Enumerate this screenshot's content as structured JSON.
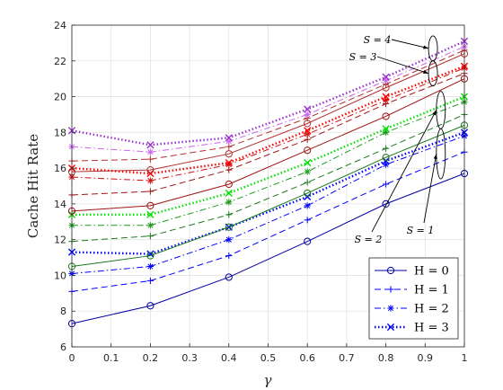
{
  "chart_data": {
    "type": "line",
    "xlabel": "γ",
    "ylabel": "Cache Hit Rate",
    "xlim": [
      0,
      1
    ],
    "ylim": [
      6,
      24
    ],
    "xticks": [
      "0",
      "0.1",
      "0.2",
      "0.3",
      "0.4",
      "0.5",
      "0.6",
      "0.7",
      "0.8",
      "0.9",
      "1"
    ],
    "yticks": [
      "6",
      "8",
      "10",
      "12",
      "14",
      "16",
      "18",
      "20",
      "22",
      "24"
    ],
    "grid": true,
    "legend_position": "bottom-right",
    "x": [
      0,
      0.2,
      0.4,
      0.6,
      0.8,
      1.0
    ],
    "legend": [
      {
        "name": "H = 0",
        "color": "#0000a0",
        "dash": "solid",
        "marker": "circle"
      },
      {
        "name": "H = 1",
        "color": "#0000ff",
        "dash": "dashed",
        "marker": "plus"
      },
      {
        "name": "H = 2",
        "color": "#0000ff",
        "dash": "dashdot",
        "marker": "star"
      },
      {
        "name": "H = 3",
        "color": "#0000ff",
        "dash": "dotted",
        "marker": "x"
      }
    ],
    "series": [
      {
        "S": 1,
        "H": 0,
        "color": "#0000a0",
        "dash": "solid",
        "marker": "circle",
        "values": [
          7.3,
          8.3,
          9.9,
          11.9,
          14.0,
          15.7
        ]
      },
      {
        "S": 1,
        "H": 1,
        "color": "#0000ff",
        "dash": "dashed",
        "marker": "plus",
        "values": [
          9.1,
          9.7,
          11.1,
          13.1,
          15.1,
          16.9
        ]
      },
      {
        "S": 1,
        "H": 2,
        "color": "#0000ff",
        "dash": "dashdot",
        "marker": "star",
        "values": [
          10.1,
          10.5,
          12.0,
          13.9,
          16.2,
          17.8
        ]
      },
      {
        "S": 1,
        "H": 3,
        "color": "#0000ff",
        "dash": "dotted",
        "marker": "x",
        "values": [
          11.3,
          11.2,
          12.7,
          14.4,
          16.4,
          18.0
        ]
      },
      {
        "S": 2,
        "H": 0,
        "color": "#1b7a1b",
        "dash": "solid",
        "marker": "circle",
        "values": [
          10.5,
          11.1,
          12.7,
          14.6,
          16.6,
          18.4
        ]
      },
      {
        "S": 2,
        "H": 1,
        "color": "#1b7a1b",
        "dash": "dashed",
        "marker": "plus",
        "values": [
          11.9,
          12.2,
          13.4,
          15.2,
          17.1,
          19.0
        ]
      },
      {
        "S": 2,
        "H": 2,
        "color": "#1b9a1b",
        "dash": "dashdot",
        "marker": "star",
        "values": [
          12.8,
          12.8,
          14.1,
          15.8,
          18.0,
          19.7
        ]
      },
      {
        "S": 2,
        "H": 3,
        "color": "#00e000",
        "dash": "dotted",
        "marker": "x",
        "values": [
          13.4,
          13.4,
          14.6,
          16.3,
          18.2,
          20.0
        ]
      },
      {
        "S": 3,
        "H": 0,
        "color": "#a01414",
        "dash": "solid",
        "marker": "circle",
        "values": [
          13.6,
          13.9,
          15.1,
          17.0,
          18.9,
          21.0
        ]
      },
      {
        "S": 3,
        "H": 1,
        "color": "#a01414",
        "dash": "dashed",
        "marker": "plus",
        "values": [
          14.5,
          14.7,
          15.9,
          17.6,
          19.6,
          21.3
        ]
      },
      {
        "S": 3,
        "H": 2,
        "color": "#d01010",
        "dash": "dashdot",
        "marker": "star",
        "values": [
          15.5,
          15.3,
          16.2,
          17.9,
          19.8,
          21.6
        ]
      },
      {
        "S": 3,
        "H": 3,
        "color": "#ff0000",
        "dash": "dotted",
        "marker": "x",
        "values": [
          16.0,
          15.7,
          16.3,
          18.1,
          20.0,
          21.7
        ]
      },
      {
        "S": 4,
        "H": 0,
        "color": "#b03030",
        "dash": "solid",
        "marker": "circle",
        "values": [
          15.8,
          15.9,
          16.8,
          18.5,
          20.5,
          22.4
        ]
      },
      {
        "S": 4,
        "H": 1,
        "color": "#b03030",
        "dash": "dashed",
        "marker": "plus",
        "values": [
          16.4,
          16.5,
          17.2,
          18.8,
          20.7,
          22.6
        ]
      },
      {
        "S": 4,
        "H": 2,
        "color": "#cc66ee",
        "dash": "dashdot",
        "marker": "star",
        "values": [
          17.2,
          16.9,
          17.5,
          19.0,
          20.9,
          22.8
        ]
      },
      {
        "S": 4,
        "H": 3,
        "color": "#9933cc",
        "dash": "dotted",
        "marker": "x",
        "values": [
          18.1,
          17.3,
          17.7,
          19.3,
          21.1,
          23.1
        ]
      }
    ],
    "annotations": [
      {
        "text": "S = 4",
        "x": 0.92,
        "ytop": 23.1,
        "ybot": 22.3
      },
      {
        "text": "S = 3",
        "x": 0.92,
        "ytop": 21.7,
        "ybot": 20.9
      },
      {
        "text": "S = 2",
        "x": 0.94,
        "ytop": 20.0,
        "ybot": 18.5
      },
      {
        "text": "S = 1",
        "x": 0.94,
        "ytop": 17.9,
        "ybot": 15.7
      }
    ]
  }
}
